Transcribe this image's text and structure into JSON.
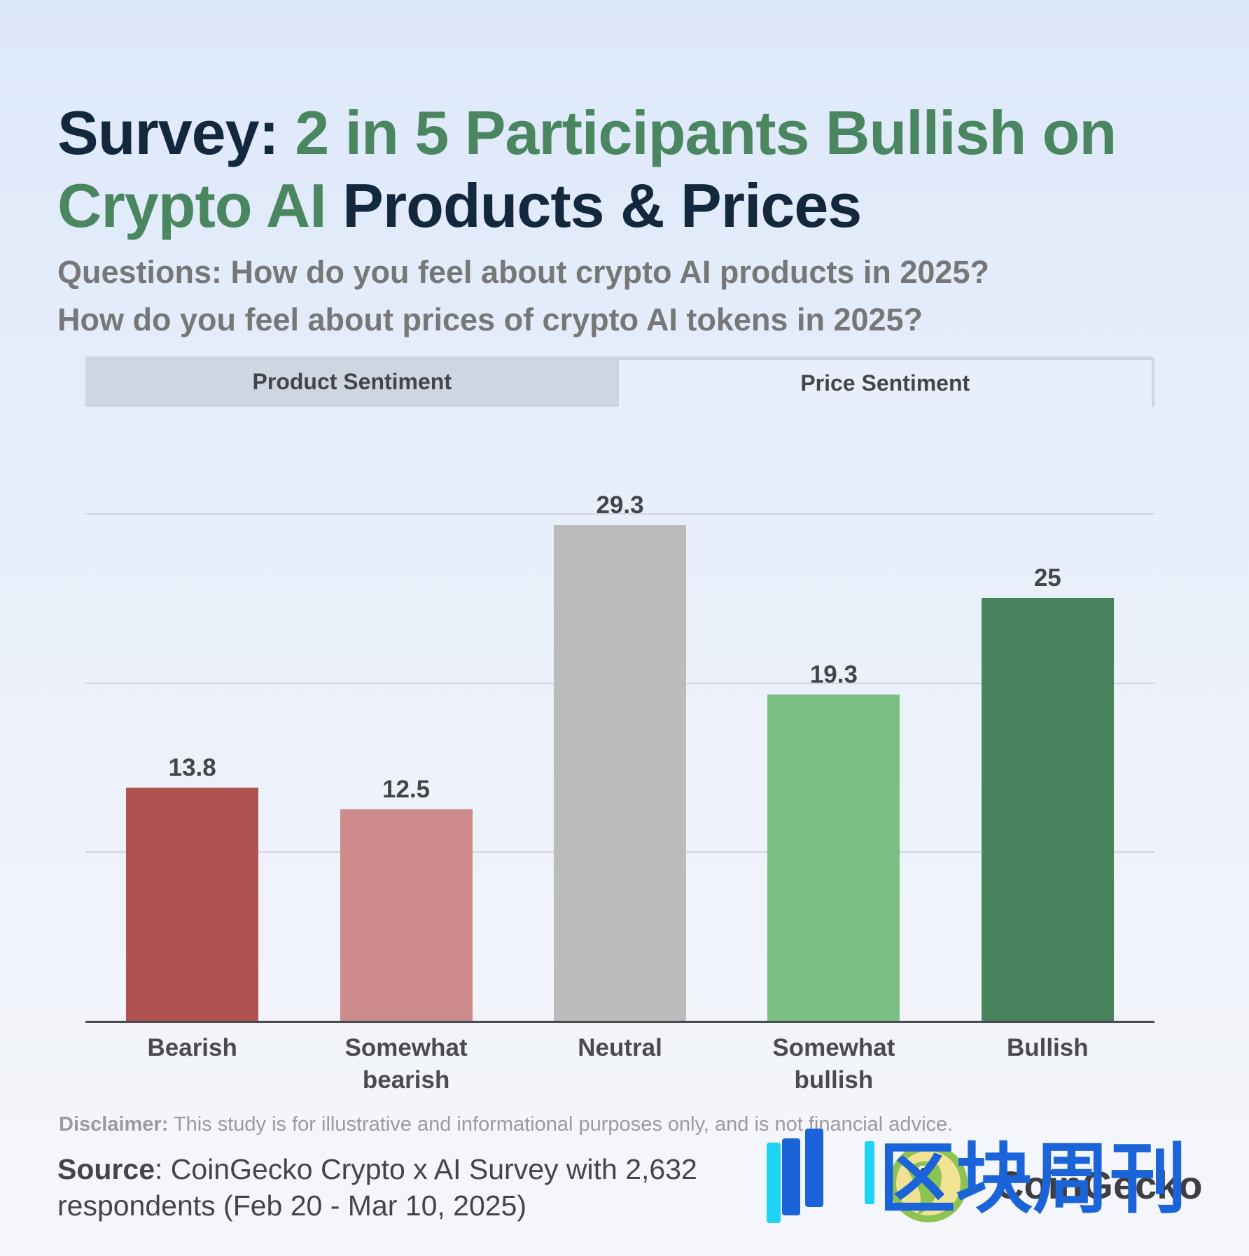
{
  "title": {
    "part1": "Survey: ",
    "part2": "2 in 5 Participants Bullish on Crypto AI",
    "part3": " Products & Prices"
  },
  "subtitle": {
    "line1": "Questions: How do you feel about crypto AI products in 2025?",
    "line2": "How do you feel about prices of crypto AI tokens in 2025?"
  },
  "tabs": [
    {
      "label": "Product Sentiment",
      "active": false
    },
    {
      "label": "Price Sentiment",
      "active": true
    }
  ],
  "chart_data": {
    "type": "bar",
    "title": "Price Sentiment",
    "categories": [
      "Bearish",
      "Somewhat bearish",
      "Neutral",
      "Somewhat bullish",
      "Bullish"
    ],
    "values": [
      13.8,
      12.5,
      29.3,
      19.3,
      25
    ],
    "value_labels": [
      "13.8",
      "12.5",
      "29.3",
      "19.3",
      "25"
    ],
    "colors": [
      "#b0524f",
      "#cd8b8b",
      "#bbbbbb",
      "#7bbf83",
      "#49835e"
    ],
    "xlabel": "",
    "ylabel": "",
    "ylim": [
      0,
      30
    ],
    "gridlines": [
      10,
      20,
      30
    ],
    "grid": true,
    "legend": "none"
  },
  "categories_display": [
    [
      "Bearish"
    ],
    [
      "Somewhat",
      "bearish"
    ],
    [
      "Neutral"
    ],
    [
      "Somewhat",
      "bullish"
    ],
    [
      "Bullish"
    ]
  ],
  "footer": {
    "disclaimer_label": "Disclaimer:",
    "disclaimer_text": " This study is for illustrative and informational purposes only, and is not financial advice.",
    "source_label": "Source",
    "source_text": ": CoinGecko Crypto x AI Survey with 2,632 respondents (Feb 20 - Mar 10, 2025)",
    "brand": "CoinGecko",
    "watermark": "区块周刊"
  }
}
